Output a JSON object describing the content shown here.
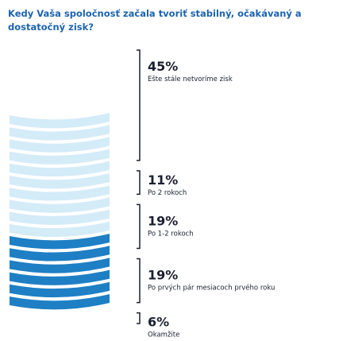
{
  "title": "Kedy Vaša spoločnosť začala tvoriť stabilný, očakávaný a dostatočný zisk?",
  "colors": {
    "title": "#1c64b0",
    "bracket": "#1a2030",
    "band_light": "#d4ebf8",
    "band_highlight": "#1e7fc4"
  },
  "chart_data": {
    "type": "bar",
    "title": "Kedy Vaša spoločnosť začala tvoriť stabilný, očakávaný a dostatočný zisk?",
    "unit": "%",
    "highlight_bands": 6,
    "categories": [
      "Okamžite",
      "Po prvých pár mesiacoch prvého roku",
      "Po 1-2 rokoch",
      "Po 2 rokoch",
      "Ešte stále netvoríme zisk"
    ],
    "values": [
      6,
      19,
      19,
      11,
      45
    ],
    "value_labels": [
      "6%",
      "19%",
      "19%",
      "11%",
      "45%"
    ]
  }
}
